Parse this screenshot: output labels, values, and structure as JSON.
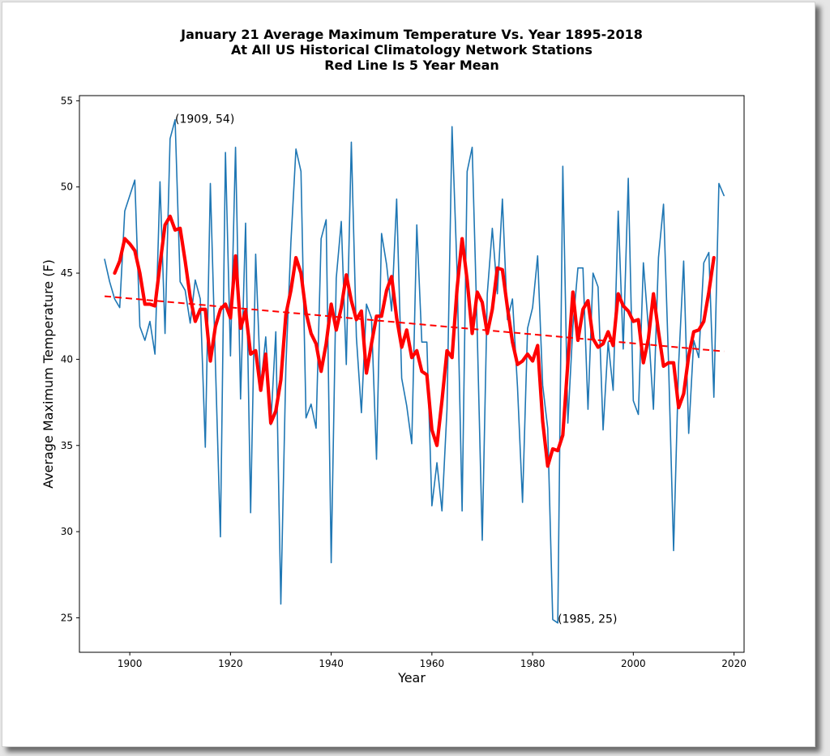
{
  "chart_data": {
    "type": "line",
    "title_lines": [
      "January 21 Average Maximum Temperature Vs. Year 1895-2018",
      "At All US Historical Climatology Network Stations",
      "Red Line Is 5 Year Mean"
    ],
    "xlabel": "Year",
    "ylabel": "Average Maximum Temperature (F)",
    "xlim": [
      1890,
      2022
    ],
    "ylim": [
      23.0,
      55.3
    ],
    "xticks": [
      1900,
      1920,
      1940,
      1960,
      1980,
      2000,
      2020
    ],
    "yticks": [
      25,
      30,
      35,
      40,
      45,
      50,
      55
    ],
    "grid": false,
    "annotations": [
      {
        "text": "(1909, 54)",
        "x": 1909,
        "y": 54
      },
      {
        "text": "(1985, 25)",
        "x": 1985,
        "y": 25
      }
    ],
    "x_start_year": 1895,
    "series": [
      {
        "style": "thin-blue",
        "color": "#1f77b4",
        "values": [
          45.8,
          44.5,
          43.5,
          43.0,
          48.6,
          49.5,
          50.4,
          41.9,
          41.1,
          42.2,
          40.3,
          50.3,
          41.5,
          52.8,
          53.9,
          44.5,
          44.0,
          42.1,
          44.6,
          43.5,
          34.9,
          50.2,
          39.8,
          29.7,
          52.0,
          40.2,
          52.3,
          37.7,
          47.9,
          31.1,
          46.1,
          38.4,
          41.3,
          36.2,
          41.6,
          25.8,
          39.6,
          46.8,
          52.2,
          50.9,
          36.6,
          37.4,
          36.0,
          47.0,
          48.1,
          28.2,
          44.7,
          48.0,
          39.7,
          52.6,
          41.3,
          36.9,
          43.2,
          42.4,
          34.2,
          47.3,
          45.5,
          42.8,
          49.3,
          38.9,
          37.3,
          35.1,
          47.8,
          41.0,
          41.0,
          31.5,
          34.0,
          31.2,
          37.1,
          53.5,
          45.1,
          31.2,
          50.9,
          52.3,
          41.6,
          29.5,
          43.8,
          47.6,
          43.8,
          49.3,
          42.3,
          43.5,
          38.4,
          31.7,
          41.8,
          43.0,
          46.0,
          38.5,
          36.0,
          24.9,
          24.7,
          51.2,
          36.3,
          41.9,
          45.3,
          45.3,
          37.1,
          45.0,
          44.2,
          35.9,
          41.0,
          38.2,
          48.6,
          40.6,
          50.5,
          37.6,
          36.8,
          45.6,
          41.8,
          37.1,
          45.9,
          49.0,
          39.8,
          28.9,
          39.7,
          45.7,
          35.7,
          41.1,
          40.1,
          45.6,
          46.2,
          37.8,
          50.2,
          49.5
        ]
      },
      {
        "style": "thick-red",
        "name": "5 Year Mean",
        "color": "#ff0000",
        "start_year": 1897,
        "values": [
          45.0,
          45.7,
          47.0,
          46.7,
          46.3,
          45.0,
          43.2,
          43.2,
          43.1,
          45.5,
          47.8,
          48.3,
          47.5,
          47.6,
          45.7,
          43.6,
          42.2,
          42.9,
          42.9,
          39.9,
          41.9,
          42.9,
          43.2,
          42.4,
          46.0,
          41.8,
          42.8,
          40.3,
          40.5,
          38.2,
          40.3,
          36.3,
          37.0,
          38.8,
          42.6,
          44.0,
          45.9,
          45.0,
          42.7,
          41.5,
          40.9,
          39.3,
          40.9,
          43.2,
          41.7,
          43.0,
          44.9,
          43.4,
          42.3,
          42.8,
          39.2,
          40.9,
          42.5,
          42.5,
          44.0,
          44.8,
          42.4,
          40.7,
          41.7,
          40.1,
          40.5,
          39.3,
          39.1,
          35.9,
          35.0,
          37.6,
          40.5,
          40.1,
          44.1,
          47.0,
          44.6,
          41.5,
          43.9,
          43.3,
          41.5,
          42.9,
          45.3,
          45.2,
          43.0,
          41.0,
          39.7,
          39.9,
          40.3,
          39.9,
          40.8,
          36.4,
          33.8,
          34.8,
          34.7,
          35.6,
          39.8,
          43.9,
          41.1,
          42.9,
          43.4,
          41.2,
          40.7,
          40.9,
          41.6,
          40.8,
          43.8,
          43.1,
          42.8,
          42.2,
          42.3,
          39.8,
          41.2,
          43.8,
          41.6,
          39.6,
          39.8,
          39.8,
          37.2,
          38.0,
          40.2,
          41.6,
          41.7,
          42.2,
          43.9,
          45.9
        ]
      },
      {
        "style": "dashed-red",
        "name": "trend",
        "color": "#ff0000",
        "x": [
          1895,
          2018
        ],
        "values": [
          43.66,
          40.46
        ]
      }
    ]
  }
}
